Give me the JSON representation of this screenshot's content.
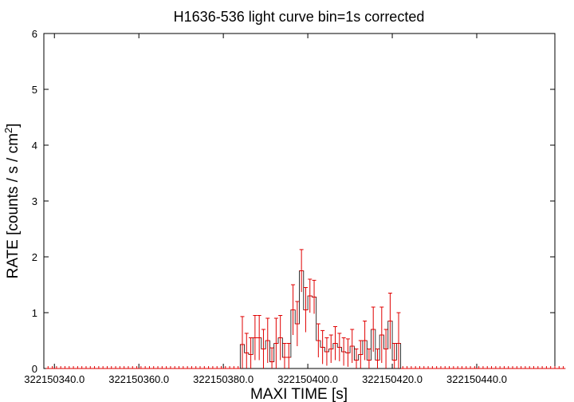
{
  "chart_data": {
    "type": "line",
    "title": "H1636-536 light curve bin=1s corrected",
    "xlabel": "MAXI TIME [s]",
    "ylabel_main": "RATE [counts / s / cm",
    "ylabel_sup": "2",
    "ylabel_close": "]",
    "xlim": [
      322150337.5,
      322150458.5
    ],
    "ylim": [
      0,
      6
    ],
    "x_ticks": [
      322150340,
      322150360,
      322150380,
      322150400,
      322150420,
      322150440
    ],
    "x_tick_labels": [
      "322150340.0",
      "322150360.0",
      "322150380.0",
      "322150400.0",
      "322150420.0",
      "322150440.0"
    ],
    "y_ticks": [
      0,
      1,
      2,
      3,
      4,
      5,
      6
    ],
    "y_tick_labels": [
      "0",
      "1",
      "2",
      "3",
      "4",
      "5",
      "6"
    ],
    "grid": false,
    "series": [
      {
        "color": "#e00000",
        "step_color": "#000000",
        "bin_width": 1,
        "x_start": 322150338,
        "values": [
          0,
          0,
          0,
          0,
          0,
          0,
          0,
          0,
          0,
          0,
          0,
          0,
          0,
          0,
          0,
          0,
          0,
          0,
          0,
          0,
          0,
          0,
          0,
          0,
          0,
          0,
          0,
          0,
          0,
          0,
          0,
          0,
          0,
          0,
          0,
          0,
          0,
          0,
          0,
          0,
          0,
          0,
          0,
          0,
          0,
          0,
          0.43,
          0.28,
          0.25,
          0.55,
          0.55,
          0.35,
          0.5,
          0.12,
          0.45,
          0.55,
          0.2,
          0.2,
          1.05,
          0.8,
          1.75,
          1.05,
          1.3,
          1.28,
          0.5,
          0.38,
          0.3,
          0.35,
          0.45,
          0.38,
          0.3,
          0.28,
          0.4,
          0.15,
          0.25,
          0.5,
          0.15,
          0.7,
          0.15,
          0.6,
          0.35,
          0.85,
          0.15,
          0.45,
          0,
          0,
          0,
          0,
          0,
          0,
          0,
          0,
          0,
          0,
          0,
          0,
          0,
          0,
          0,
          0,
          0,
          0,
          0,
          0,
          0,
          0,
          0,
          0,
          0,
          0,
          0,
          0,
          0,
          0,
          0,
          0,
          0,
          0,
          0,
          0,
          0,
          0,
          0
        ],
        "errors": [
          0,
          0,
          0,
          0,
          0,
          0,
          0,
          0,
          0,
          0,
          0,
          0,
          0,
          0,
          0,
          0,
          0,
          0,
          0,
          0,
          0,
          0,
          0,
          0,
          0,
          0,
          0,
          0,
          0,
          0,
          0,
          0,
          0,
          0,
          0,
          0,
          0,
          0,
          0,
          0,
          0,
          0,
          0,
          0,
          0,
          0,
          0.5,
          0.35,
          0.3,
          0.4,
          0.4,
          0.35,
          0.4,
          0.25,
          0.45,
          0.4,
          0.25,
          0.25,
          0.45,
          0.4,
          0.38,
          0.4,
          0.3,
          0.3,
          0.3,
          0.3,
          0.25,
          0.25,
          0.3,
          0.25,
          0.25,
          0.25,
          0.3,
          0.2,
          0.25,
          0.35,
          0.2,
          0.4,
          0.2,
          0.5,
          0.35,
          0.5,
          0.3,
          0.55,
          0,
          0,
          0,
          0,
          0,
          0,
          0,
          0,
          0,
          0,
          0,
          0,
          0,
          0,
          0,
          0,
          0,
          0,
          0,
          0,
          0,
          0,
          0,
          0,
          0,
          0,
          0,
          0,
          0,
          0,
          0,
          0,
          0,
          0,
          0,
          0,
          0,
          0,
          0
        ]
      }
    ]
  }
}
